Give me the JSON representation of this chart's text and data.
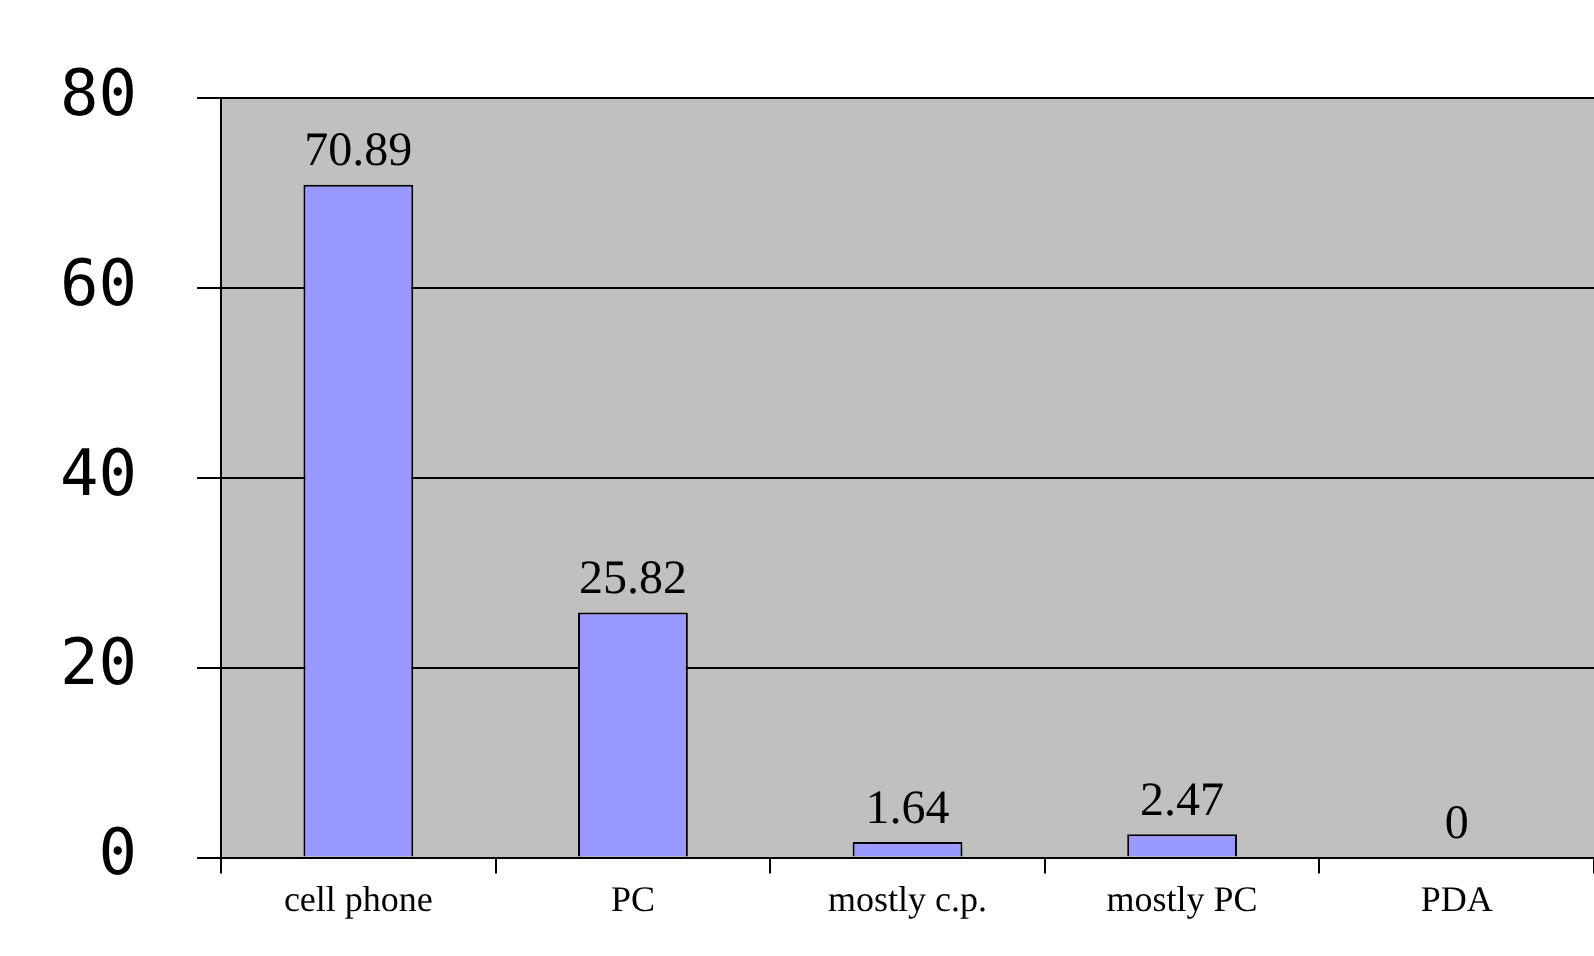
{
  "chart_data": {
    "type": "bar",
    "categories": [
      "cell phone",
      "PC",
      "mostly c.p.",
      "mostly PC",
      "PDA"
    ],
    "values": [
      70.89,
      25.82,
      1.64,
      2.47,
      0
    ],
    "color": "#9999ff",
    "ylim": [
      0,
      80
    ],
    "yticks": [
      0,
      20,
      40,
      60,
      80
    ],
    "grid": "y",
    "legend": false,
    "data_labels": true
  }
}
